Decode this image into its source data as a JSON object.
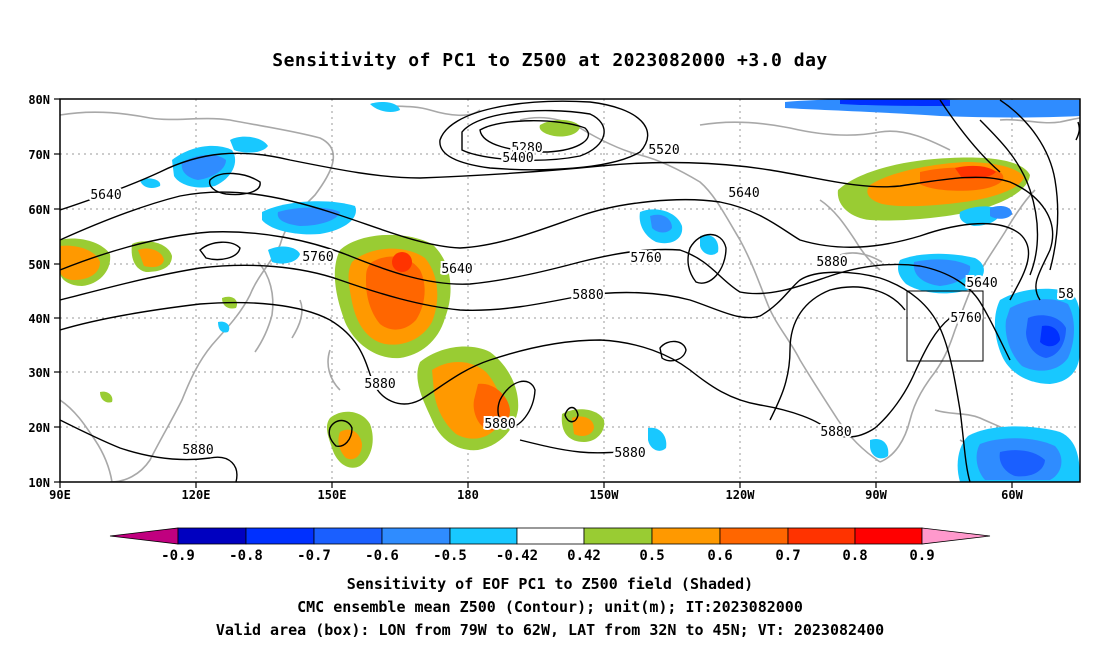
{
  "title": "Sensitivity of PC1 to Z500 at 2023082000 +3.0 day",
  "axes": {
    "lat_ticks": [
      "80N",
      "70N",
      "60N",
      "50N",
      "40N",
      "30N",
      "20N",
      "10N"
    ],
    "lon_ticks": [
      "90E",
      "120E",
      "150E",
      "180",
      "150W",
      "120W",
      "90W",
      "60W"
    ]
  },
  "contour_labels": [
    "5280",
    "5400",
    "5520",
    "5640",
    "5640",
    "5640",
    "5640",
    "5760",
    "5760",
    "5760",
    "5880",
    "5880",
    "5880",
    "5880",
    "5880",
    "5880",
    "5880",
    "58"
  ],
  "colorbar": {
    "labels": [
      "-0.9",
      "-0.8",
      "-0.7",
      "-0.6",
      "-0.5",
      "-0.42",
      "0.42",
      "0.5",
      "0.6",
      "0.7",
      "0.8",
      "0.9"
    ],
    "colors": [
      "#c0007f",
      "#0000c0",
      "#0030ff",
      "#1a5fff",
      "#2f8cff",
      "#18c8ff",
      "#ffffff",
      "#99cc33",
      "#ff9900",
      "#ff6600",
      "#ff3300",
      "#ff0000",
      "#ff99cc"
    ]
  },
  "valid_box": {
    "lon_from": "79W",
    "lon_to": "62W",
    "lat_from": "32N",
    "lat_to": "45N"
  },
  "captions": {
    "line1": "Sensitivity of EOF PC1 to Z500 field (Shaded)",
    "line2": "CMC ensemble mean Z500 (Contour); unit(m); IT:2023082000",
    "line3": "Valid area (box): LON from 79W to 62W, LAT from 32N to 45N; VT: 2023082400"
  }
}
